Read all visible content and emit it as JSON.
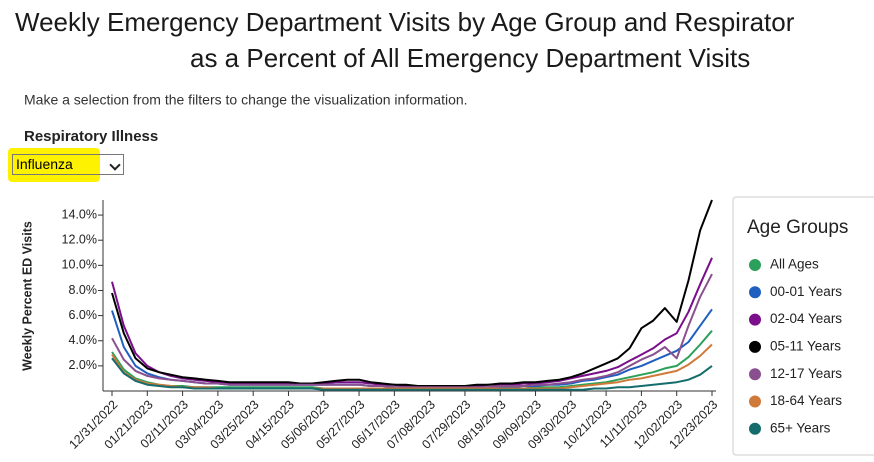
{
  "header": {
    "title": "Weekly Emergency Department Visits by Age Group and Respirator",
    "subtitle": "as a Percent of All Emergency Department Visits"
  },
  "instructions": "Make a selection from the filters to change the visualization information.",
  "filter": {
    "label": "Respiratory Illness",
    "selected": "Influenza"
  },
  "chart_data": {
    "type": "line",
    "y_label": "Weekly Percent ED Visits",
    "legend_title": "Age Groups",
    "legend": "right",
    "grid": false,
    "categories": [
      "12/31/2022",
      null,
      null,
      "01/21/2023",
      null,
      null,
      "02/11/2023",
      null,
      null,
      "03/04/2023",
      null,
      null,
      "03/25/2023",
      null,
      null,
      "04/15/2023",
      null,
      null,
      "05/06/2023",
      null,
      null,
      "05/27/2023",
      null,
      null,
      "06/17/2023",
      null,
      null,
      "07/08/2023",
      null,
      null,
      "07/29/2023",
      null,
      null,
      "08/19/2023",
      null,
      null,
      "09/09/2023",
      null,
      null,
      "09/30/2023",
      null,
      null,
      "10/21/2023",
      null,
      null,
      "11/11/2023",
      null,
      null,
      "12/02/2023",
      null,
      null,
      "12/23/2023"
    ],
    "ylim": [
      0,
      15.2
    ],
    "yticks": [
      {
        "value": 2,
        "label": "2.0%"
      },
      {
        "value": 4,
        "label": "4.0%"
      },
      {
        "value": 6,
        "label": "6.0%"
      },
      {
        "value": 8,
        "label": "8.0%"
      },
      {
        "value": 10,
        "label": "10.0%"
      },
      {
        "value": 12,
        "label": "12.0%"
      },
      {
        "value": 14,
        "label": "14.0%"
      }
    ],
    "series": [
      {
        "name": "All Ages",
        "color": "#2ca05a",
        "values": [
          3.1,
          1.7,
          1.0,
          0.7,
          0.5,
          0.4,
          0.4,
          0.3,
          0.3,
          0.3,
          0.3,
          0.3,
          0.3,
          0.3,
          0.3,
          0.3,
          0.3,
          0.3,
          0.2,
          0.2,
          0.2,
          0.2,
          0.2,
          0.2,
          0.2,
          0.2,
          0.2,
          0.2,
          0.2,
          0.2,
          0.2,
          0.2,
          0.2,
          0.2,
          0.2,
          0.2,
          0.3,
          0.3,
          0.3,
          0.4,
          0.5,
          0.6,
          0.7,
          0.9,
          1.1,
          1.3,
          1.5,
          1.8,
          2.0,
          2.7,
          3.7,
          4.8
        ]
      },
      {
        "name": "00-01 Years",
        "color": "#1f5fbf",
        "values": [
          6.4,
          3.5,
          2.0,
          1.4,
          1.1,
          0.9,
          0.8,
          0.7,
          0.6,
          0.6,
          0.5,
          0.5,
          0.5,
          0.5,
          0.5,
          0.5,
          0.5,
          0.5,
          0.5,
          0.5,
          0.5,
          0.5,
          0.4,
          0.4,
          0.3,
          0.3,
          0.3,
          0.3,
          0.3,
          0.3,
          0.3,
          0.3,
          0.3,
          0.3,
          0.3,
          0.4,
          0.4,
          0.5,
          0.5,
          0.6,
          0.8,
          0.9,
          1.1,
          1.3,
          1.7,
          2.0,
          2.4,
          2.8,
          3.2,
          3.9,
          5.2,
          6.5
        ]
      },
      {
        "name": "02-04 Years",
        "color": "#7b0e8a",
        "values": [
          8.7,
          5.2,
          3.0,
          2.0,
          1.5,
          1.2,
          1.0,
          0.9,
          0.8,
          0.7,
          0.6,
          0.6,
          0.6,
          0.6,
          0.6,
          0.6,
          0.6,
          0.6,
          0.6,
          0.7,
          0.7,
          0.7,
          0.6,
          0.5,
          0.5,
          0.4,
          0.4,
          0.4,
          0.4,
          0.4,
          0.4,
          0.4,
          0.5,
          0.5,
          0.5,
          0.6,
          0.6,
          0.7,
          0.8,
          1.0,
          1.2,
          1.4,
          1.6,
          1.9,
          2.4,
          2.9,
          3.4,
          4.1,
          4.6,
          6.3,
          8.5,
          10.6
        ]
      },
      {
        "name": "05-11 Years",
        "color": "#000000",
        "values": [
          7.8,
          4.6,
          2.6,
          1.8,
          1.5,
          1.3,
          1.1,
          1.0,
          0.9,
          0.8,
          0.7,
          0.7,
          0.7,
          0.7,
          0.7,
          0.7,
          0.6,
          0.6,
          0.7,
          0.8,
          0.9,
          0.9,
          0.7,
          0.6,
          0.5,
          0.5,
          0.4,
          0.4,
          0.4,
          0.4,
          0.4,
          0.5,
          0.5,
          0.6,
          0.6,
          0.7,
          0.7,
          0.8,
          0.9,
          1.1,
          1.4,
          1.8,
          2.2,
          2.6,
          3.4,
          5.0,
          5.6,
          6.6,
          5.5,
          8.8,
          12.8,
          15.2
        ]
      },
      {
        "name": "12-17 Years",
        "color": "#8a4f8f",
        "values": [
          4.2,
          2.5,
          1.6,
          1.2,
          1.0,
          0.9,
          0.8,
          0.7,
          0.6,
          0.6,
          0.5,
          0.5,
          0.5,
          0.5,
          0.5,
          0.5,
          0.5,
          0.5,
          0.5,
          0.5,
          0.5,
          0.5,
          0.4,
          0.4,
          0.3,
          0.3,
          0.3,
          0.3,
          0.3,
          0.3,
          0.3,
          0.3,
          0.3,
          0.4,
          0.4,
          0.4,
          0.5,
          0.5,
          0.6,
          0.7,
          0.9,
          1.0,
          1.2,
          1.5,
          2.0,
          2.5,
          2.9,
          3.5,
          2.6,
          5.2,
          7.5,
          9.3
        ]
      },
      {
        "name": "18-64 Years",
        "color": "#d07a3a",
        "values": [
          2.9,
          1.5,
          0.9,
          0.6,
          0.5,
          0.4,
          0.3,
          0.3,
          0.3,
          0.2,
          0.2,
          0.2,
          0.2,
          0.2,
          0.2,
          0.2,
          0.2,
          0.2,
          0.2,
          0.2,
          0.2,
          0.2,
          0.2,
          0.2,
          0.2,
          0.2,
          0.2,
          0.2,
          0.2,
          0.2,
          0.2,
          0.2,
          0.2,
          0.2,
          0.2,
          0.2,
          0.2,
          0.2,
          0.2,
          0.3,
          0.4,
          0.5,
          0.6,
          0.7,
          0.9,
          1.0,
          1.2,
          1.4,
          1.6,
          2.1,
          2.8,
          3.7
        ]
      },
      {
        "name": "65+ Years",
        "color": "#146c6c",
        "values": [
          2.6,
          1.4,
          0.8,
          0.5,
          0.4,
          0.3,
          0.3,
          0.2,
          0.2,
          0.2,
          0.2,
          0.2,
          0.2,
          0.2,
          0.2,
          0.2,
          0.2,
          0.2,
          0.1,
          0.1,
          0.1,
          0.1,
          0.1,
          0.1,
          0.1,
          0.1,
          0.1,
          0.1,
          0.1,
          0.1,
          0.1,
          0.1,
          0.1,
          0.1,
          0.1,
          0.1,
          0.1,
          0.1,
          0.1,
          0.1,
          0.1,
          0.2,
          0.2,
          0.3,
          0.3,
          0.4,
          0.5,
          0.6,
          0.7,
          0.9,
          1.3,
          2.0
        ]
      }
    ]
  }
}
